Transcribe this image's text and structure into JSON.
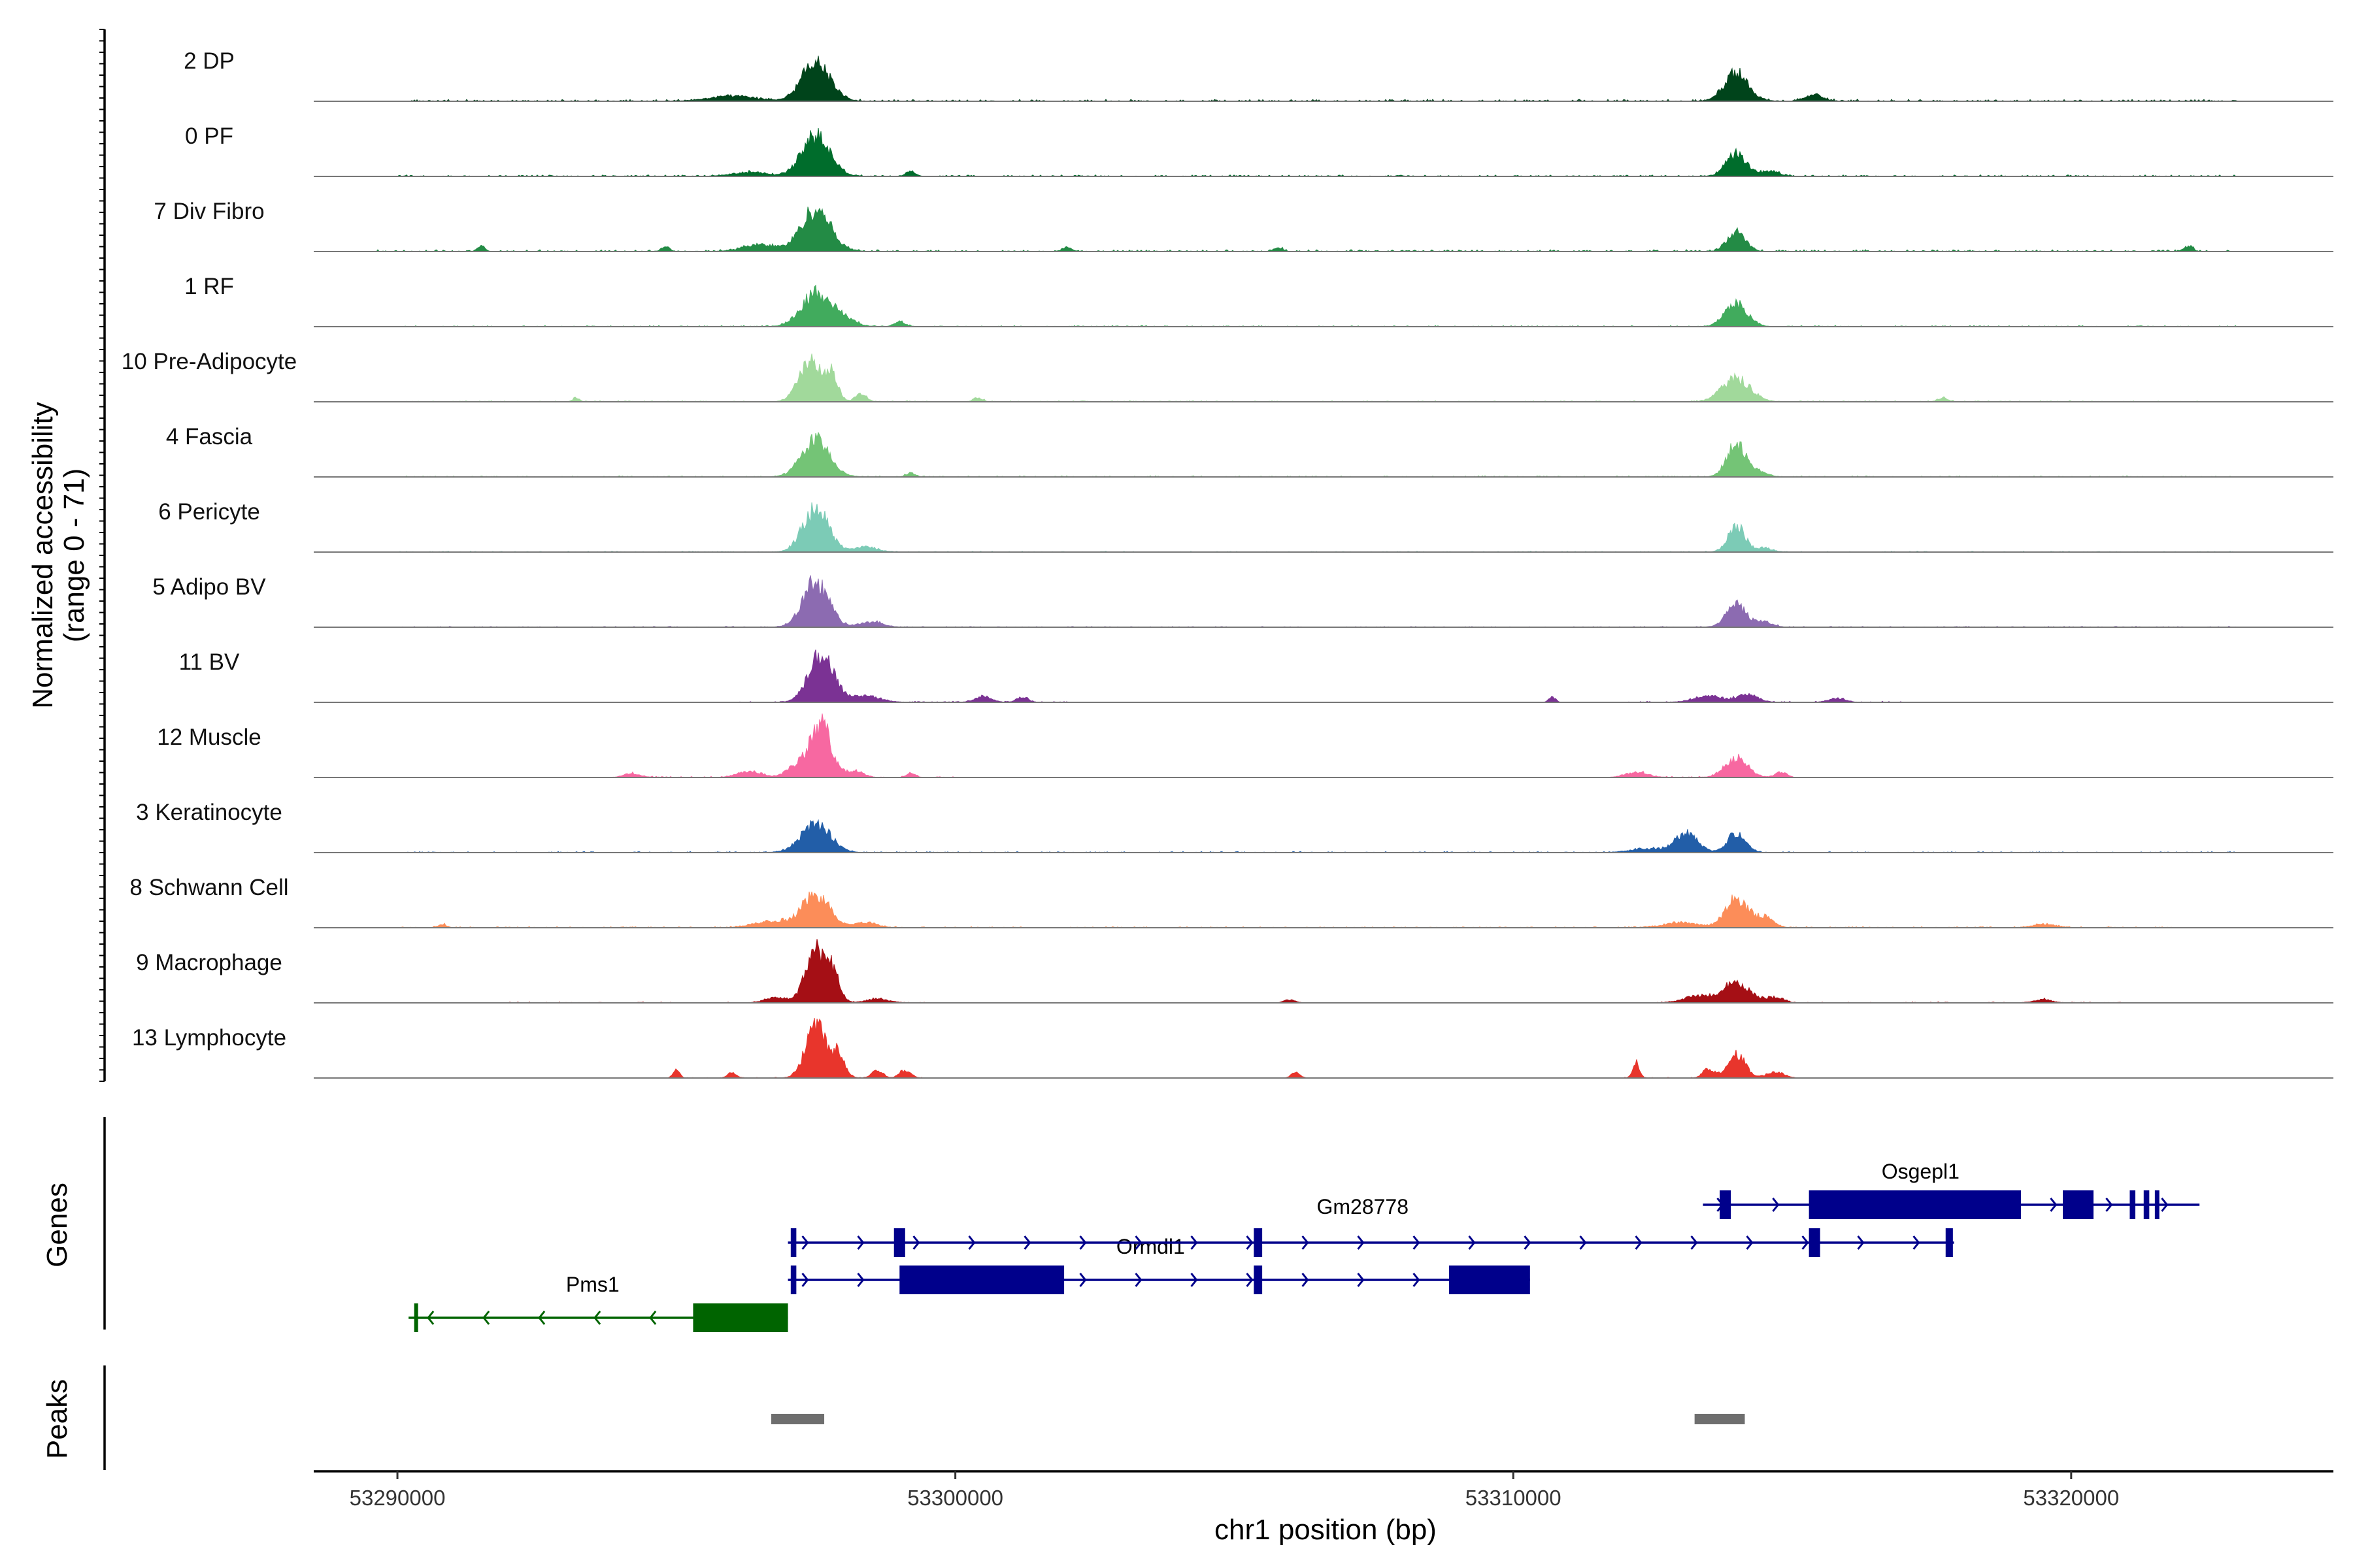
{
  "chart_data": {
    "type": "area",
    "title": "",
    "ylabel": "Normalized accessibility",
    "ylabel_range": "(range 0 - 71)",
    "xlabel": "chr1 position (bp)",
    "xlim": [
      53288500,
      53324700
    ],
    "ylim": [
      0,
      71
    ],
    "x_ticks": [
      53290000,
      53300000,
      53310000,
      53320000
    ],
    "x_tick_labels": [
      "53290000",
      "53300000",
      "53310000",
      "53320000"
    ],
    "section_labels": {
      "genes": "Genes",
      "peaks": "Peaks"
    },
    "tracks": [
      {
        "name": "2 DP",
        "color": "#00441b",
        "peaks": [
          [
            53297500,
            60,
            250
          ],
          [
            53296000,
            8,
            400
          ],
          [
            53314000,
            42,
            220
          ],
          [
            53315400,
            10,
            150
          ]
        ],
        "noise": [
          [
            53290000,
            53323000,
            2.5
          ]
        ]
      },
      {
        "name": "0 PF",
        "color": "#006d2c",
        "peaks": [
          [
            53297500,
            62,
            250
          ],
          [
            53296300,
            6,
            300
          ],
          [
            53314000,
            35,
            180
          ],
          [
            53314600,
            8,
            150
          ],
          [
            53299200,
            8,
            80
          ]
        ],
        "noise": [
          [
            53290000,
            53323000,
            2
          ]
        ]
      },
      {
        "name": "7 Div Fibro",
        "color": "#238b45",
        "peaks": [
          [
            53297500,
            66,
            260
          ],
          [
            53296500,
            10,
            300
          ],
          [
            53314000,
            30,
            160
          ],
          [
            53294800,
            8,
            70
          ],
          [
            53291500,
            9,
            60
          ],
          [
            53302000,
            6,
            80
          ],
          [
            53305800,
            6,
            70
          ],
          [
            53322100,
            8,
            80
          ]
        ],
        "noise": [
          [
            53289500,
            53323000,
            2.5
          ]
        ]
      },
      {
        "name": "1 RF",
        "color": "#41ab5d",
        "peaks": [
          [
            53297500,
            52,
            260
          ],
          [
            53298000,
            12,
            200
          ],
          [
            53314000,
            36,
            200
          ],
          [
            53299000,
            8,
            100
          ]
        ],
        "noise": [
          [
            53290000,
            53323000,
            1.5
          ]
        ]
      },
      {
        "name": "10 Pre-Adipocyte",
        "color": "#a1d99b",
        "peaks": [
          [
            53297400,
            62,
            200
          ],
          [
            53297800,
            40,
            100
          ],
          [
            53298300,
            12,
            100
          ],
          [
            53314000,
            36,
            250
          ],
          [
            53293200,
            6,
            60
          ],
          [
            53300400,
            6,
            80
          ],
          [
            53317700,
            6,
            80
          ]
        ],
        "noise": [
          [
            53290000,
            53323000,
            1.5
          ]
        ]
      },
      {
        "name": "4 Fascia",
        "color": "#74c476",
        "peaks": [
          [
            53297500,
            56,
            250
          ],
          [
            53314000,
            50,
            170
          ],
          [
            53314400,
            8,
            150
          ],
          [
            53299200,
            6,
            80
          ]
        ],
        "noise": [
          [
            53290000,
            53323000,
            1.5
          ]
        ]
      },
      {
        "name": "6 Pericyte",
        "color": "#7ccbb6",
        "peaks": [
          [
            53297500,
            66,
            230
          ],
          [
            53298400,
            8,
            200
          ],
          [
            53314000,
            40,
            150
          ],
          [
            53314500,
            6,
            150
          ]
        ],
        "noise": [
          [
            53290000,
            53323000,
            1.2
          ]
        ]
      },
      {
        "name": "5 Adipo BV",
        "color": "#8c6bb1",
        "peaks": [
          [
            53297500,
            72,
            230
          ],
          [
            53298500,
            8,
            200
          ],
          [
            53314000,
            34,
            180
          ],
          [
            53314500,
            8,
            150
          ]
        ],
        "noise": [
          [
            53290000,
            53323000,
            1.2
          ]
        ]
      },
      {
        "name": "11 BV",
        "color": "#7b3294",
        "peaks": [
          [
            53297600,
            76,
            220
          ],
          [
            53298400,
            10,
            250
          ],
          [
            53300500,
            8,
            150
          ],
          [
            53301200,
            8,
            100
          ],
          [
            53313500,
            10,
            250
          ],
          [
            53314200,
            12,
            180
          ],
          [
            53310700,
            8,
            60
          ],
          [
            53315800,
            6,
            150
          ]
        ],
        "noise": [
          [
            53296000,
            53302000,
            1.5
          ],
          [
            53312000,
            53317000,
            1.5
          ]
        ]
      },
      {
        "name": "12 Muscle",
        "color": "#f768a1",
        "peaks": [
          [
            53297600,
            80,
            180
          ],
          [
            53297200,
            20,
            200
          ],
          [
            53298200,
            10,
            150
          ],
          [
            53296300,
            10,
            200
          ],
          [
            53294200,
            6,
            150
          ],
          [
            53299200,
            6,
            80
          ],
          [
            53314000,
            30,
            200
          ],
          [
            53312200,
            8,
            200
          ],
          [
            53314800,
            8,
            100
          ]
        ],
        "noise": [
          [
            53294000,
            53300000,
            1.5
          ],
          [
            53312000,
            53315000,
            1.5
          ]
        ]
      },
      {
        "name": "3 Keratinocyte",
        "color": "#225ea8",
        "peaks": [
          [
            53297500,
            44,
            260
          ],
          [
            53313100,
            30,
            200
          ],
          [
            53314000,
            30,
            160
          ],
          [
            53312400,
            6,
            300
          ]
        ],
        "noise": [
          [
            53290000,
            53323000,
            1.5
          ]
        ]
      },
      {
        "name": "8 Schwann Cell",
        "color": "#fc8d59",
        "peaks": [
          [
            53297500,
            50,
            250
          ],
          [
            53296700,
            10,
            300
          ],
          [
            53298400,
            8,
            200
          ],
          [
            53314000,
            46,
            200
          ],
          [
            53314500,
            16,
            150
          ],
          [
            53313000,
            8,
            300
          ],
          [
            53290800,
            5,
            80
          ],
          [
            53319500,
            5,
            200
          ]
        ],
        "noise": [
          [
            53290000,
            53322000,
            1.5
          ]
        ]
      },
      {
        "name": "9 Macrophage",
        "color": "#a50f15",
        "peaks": [
          [
            53297500,
            82,
            180
          ],
          [
            53297800,
            40,
            120
          ],
          [
            53296800,
            8,
            200
          ],
          [
            53298600,
            6,
            200
          ],
          [
            53314000,
            30,
            250
          ],
          [
            53313300,
            10,
            250
          ],
          [
            53314700,
            8,
            150
          ],
          [
            53306000,
            5,
            100
          ],
          [
            53319500,
            5,
            150
          ]
        ],
        "noise": [
          [
            53292000,
            53299500,
            1.2
          ],
          [
            53312500,
            53321000,
            1.2
          ]
        ]
      },
      {
        "name": "13 Lymphocyte",
        "color": "#e8352c",
        "peaks": [
          [
            53297500,
            84,
            180
          ],
          [
            53297900,
            36,
            120
          ],
          [
            53298600,
            12,
            100
          ],
          [
            53299100,
            12,
            100
          ],
          [
            53295000,
            12,
            60
          ],
          [
            53296000,
            8,
            80
          ],
          [
            53306100,
            8,
            80
          ],
          [
            53312200,
            24,
            60
          ],
          [
            53314000,
            36,
            160
          ],
          [
            53313500,
            14,
            100
          ],
          [
            53314700,
            10,
            150
          ]
        ],
        "noise": [
          [
            53295000,
            53299500,
            1
          ],
          [
            53312000,
            53315000,
            1
          ]
        ]
      }
    ],
    "genes": [
      {
        "name": "Pms1",
        "strand": "-",
        "start": 53290200,
        "end": 53297000,
        "row": 3,
        "color": "#006400",
        "exons": [
          [
            53290300,
            53290330
          ],
          [
            53295300,
            53297000
          ]
        ]
      },
      {
        "name": "Ormdl1",
        "strand": "+",
        "start": 53297000,
        "end": 53310300,
        "row": 2,
        "color": "#00008b",
        "exons": [
          [
            53297050,
            53297150
          ],
          [
            53299000,
            53301950
          ],
          [
            53305350,
            53305500
          ],
          [
            53308850,
            53310300
          ]
        ]
      },
      {
        "name": "Gm28778",
        "strand": "+",
        "start": 53297000,
        "end": 53317900,
        "row": 1,
        "color": "#00008b",
        "exons": [
          [
            53297050,
            53297150
          ],
          [
            53298900,
            53299100
          ],
          [
            53305350,
            53305500
          ],
          [
            53315300,
            53315500
          ],
          [
            53317750,
            53317880
          ]
        ]
      },
      {
        "name": "Osgepl1",
        "strand": "+",
        "start": 53313400,
        "end": 53322300,
        "row": 0,
        "color": "#00008b",
        "exons": [
          [
            53313700,
            53313900
          ],
          [
            53315300,
            53319100
          ],
          [
            53319850,
            53320400
          ],
          [
            53321050,
            53321150
          ],
          [
            53321300,
            53321400
          ],
          [
            53321500,
            53321580
          ]
        ]
      }
    ],
    "peaks_track": [
      {
        "start": 53296700,
        "end": 53297650,
        "color": "#6e6e6e"
      },
      {
        "start": 53313250,
        "end": 53314150,
        "color": "#6e6e6e"
      }
    ]
  }
}
